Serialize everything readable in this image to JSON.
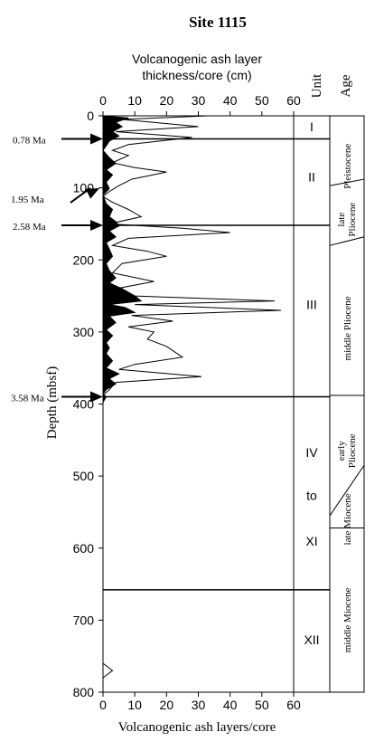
{
  "chart_data": {
    "type": "area",
    "title": "Site 1115",
    "top_axis_label_line1": "Volcanogenic ash layer",
    "top_axis_label_line2": "thickness/core (cm)",
    "bottom_axis_label": "Volcanogenic ash layers/core",
    "ylabel": "Depth (mbsf)",
    "unit_header": "Unit",
    "age_header": "Age",
    "xlim": [
      0,
      60
    ],
    "ylim": [
      0,
      800
    ],
    "x_ticks": [
      "0",
      "10",
      "20",
      "30",
      "40",
      "50",
      "60"
    ],
    "y_ticks": [
      "0",
      "100",
      "200",
      "300",
      "400",
      "500",
      "600",
      "700",
      "800"
    ],
    "series": [
      {
        "style": "filled",
        "points": [
          [
            0,
            0
          ],
          [
            8,
            3
          ],
          [
            4,
            9
          ],
          [
            6,
            15
          ],
          [
            3,
            22
          ],
          [
            5,
            28
          ],
          [
            2,
            35
          ],
          [
            1,
            42
          ],
          [
            0,
            48
          ],
          [
            2,
            58
          ],
          [
            4,
            66
          ],
          [
            1,
            75
          ],
          [
            3,
            82
          ],
          [
            1,
            92
          ],
          [
            2,
            101
          ],
          [
            0,
            110
          ],
          [
            1,
            122
          ],
          [
            3,
            130
          ],
          [
            2,
            140
          ],
          [
            4,
            147
          ],
          [
            5,
            153
          ],
          [
            2,
            160
          ],
          [
            4,
            168
          ],
          [
            1,
            176
          ],
          [
            2,
            185
          ],
          [
            3,
            195
          ],
          [
            1,
            205
          ],
          [
            2,
            215
          ],
          [
            4,
            225
          ],
          [
            2,
            232
          ],
          [
            6,
            240
          ],
          [
            10,
            250
          ],
          [
            12,
            257
          ],
          [
            2,
            262
          ],
          [
            7,
            266
          ],
          [
            10,
            273
          ],
          [
            2,
            278
          ],
          [
            4,
            287
          ],
          [
            1,
            297
          ],
          [
            3,
            305
          ],
          [
            1,
            315
          ],
          [
            2,
            322
          ],
          [
            1,
            330
          ],
          [
            3,
            340
          ],
          [
            1,
            350
          ],
          [
            5,
            358
          ],
          [
            2,
            365
          ],
          [
            4,
            372
          ],
          [
            1,
            380
          ],
          [
            0,
            386
          ],
          [
            1,
            390
          ],
          [
            0,
            398
          ]
        ]
      },
      {
        "style": "outline",
        "points": [
          [
            0,
            0
          ],
          [
            33,
            0
          ],
          [
            6,
            5
          ],
          [
            30,
            15
          ],
          [
            4,
            22
          ],
          [
            28,
            30
          ],
          [
            8,
            40
          ],
          [
            3,
            48
          ],
          [
            8,
            55
          ],
          [
            3,
            65
          ],
          [
            10,
            72
          ],
          [
            20,
            78
          ],
          [
            9,
            88
          ],
          [
            5,
            97
          ],
          [
            2,
            105
          ],
          [
            0,
            112
          ],
          [
            3,
            120
          ],
          [
            8,
            130
          ],
          [
            12,
            140
          ],
          [
            2,
            150
          ],
          [
            25,
            156
          ],
          [
            40,
            162
          ],
          [
            8,
            170
          ],
          [
            3,
            180
          ],
          [
            14,
            188
          ],
          [
            20,
            195
          ],
          [
            6,
            205
          ],
          [
            3,
            218
          ],
          [
            16,
            230
          ],
          [
            4,
            240
          ],
          [
            10,
            250
          ],
          [
            54,
            257
          ],
          [
            10,
            262
          ],
          [
            56,
            270
          ],
          [
            9,
            277
          ],
          [
            22,
            285
          ],
          [
            8,
            293
          ],
          [
            16,
            300
          ],
          [
            14,
            310
          ],
          [
            20,
            320
          ],
          [
            25,
            335
          ],
          [
            10,
            345
          ],
          [
            5,
            352
          ],
          [
            31,
            362
          ],
          [
            4,
            370
          ],
          [
            2,
            380
          ],
          [
            0,
            388
          ],
          [
            0,
            398
          ]
        ]
      },
      {
        "style": "outline",
        "points": [
          [
            0,
            760
          ],
          [
            3,
            770
          ],
          [
            0,
            780
          ]
        ]
      }
    ],
    "unit_boundaries": [
      0,
      32,
      152,
      390,
      658,
      800
    ],
    "unit_labels": [
      {
        "text": "I",
        "depth": 15
      },
      {
        "text": "II",
        "depth": 85
      },
      {
        "text": "III",
        "depth": 262
      },
      {
        "text": "IV",
        "depth": 467
      },
      {
        "text": "to",
        "depth": 527
      },
      {
        "text": "XI",
        "depth": 590
      },
      {
        "text": "XII",
        "depth": 727
      }
    ],
    "ages": [
      {
        "text": "Pleistocene",
        "depth": 70
      },
      {
        "text": "late Pliocene",
        "depth": 144
      },
      {
        "text": "middle Pliocene",
        "depth": 295
      },
      {
        "text": "early Pliocene",
        "depth": 465
      },
      {
        "text": "late Miocene",
        "depth": 560
      },
      {
        "text": "middle Miocene",
        "depth": 700
      }
    ],
    "age_boundaries": [
      {
        "top": 0,
        "bottom": 0
      },
      {
        "top": 88,
        "bottom": 97
      },
      {
        "top": 168,
        "bottom": 180
      },
      {
        "top": 388,
        "bottom": 388
      },
      {
        "top": 485,
        "bottom": 555
      },
      {
        "top": 572,
        "bottom": 572
      },
      {
        "top": 800,
        "bottom": 800
      }
    ],
    "age_markers": [
      {
        "label": "0.78 Ma",
        "depth": 32
      },
      {
        "label": "1.95 Ma",
        "depth": 108
      },
      {
        "label": "2.58 Ma",
        "depth": 152
      },
      {
        "label": "3.58 Ma",
        "depth": 390
      }
    ],
    "grid": false
  }
}
